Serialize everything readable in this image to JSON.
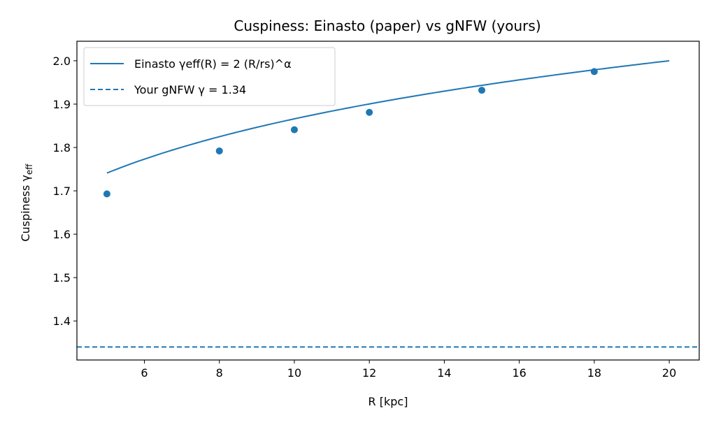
{
  "chart_data": {
    "type": "line",
    "title": "Cuspiness: Einasto (paper) vs gNFW (yours)",
    "xlabel": "R [kpc]",
    "ylabel": "Cuspiness  γeff",
    "xlim": [
      4.2,
      20.8
    ],
    "ylim": [
      1.31,
      2.045
    ],
    "x_ticks": [
      6,
      8,
      10,
      12,
      14,
      16,
      18,
      20
    ],
    "y_ticks": [
      1.4,
      1.5,
      1.6,
      1.7,
      1.8,
      1.9,
      2.0
    ],
    "x_tick_labels": [
      "6",
      "8",
      "10",
      "12",
      "14",
      "16",
      "18",
      "20"
    ],
    "y_tick_labels": [
      "1.4",
      "1.5",
      "1.6",
      "1.7",
      "1.8",
      "1.9",
      "2.0"
    ],
    "grid": false,
    "legend_position": "upper-left",
    "series": [
      {
        "name": "Einasto  γeff(R) = 2 (R/rs)^α",
        "style": "solid",
        "curve": {
          "formula": "2*(R/rs)^alpha",
          "rs": 20,
          "alpha": 0.1,
          "x_start": 5,
          "x_end": 20
        },
        "points_x": [
          5,
          8,
          10,
          12,
          15,
          18
        ],
        "points_y": [
          1.693,
          1.792,
          1.841,
          1.881,
          1.932,
          1.975
        ]
      },
      {
        "name": "Your gNFW  γ = 1.34",
        "style": "dashed",
        "y": 1.34
      }
    ],
    "colors": {
      "series": "#1f77b4",
      "axes": "#000000",
      "background": "#ffffff"
    }
  }
}
